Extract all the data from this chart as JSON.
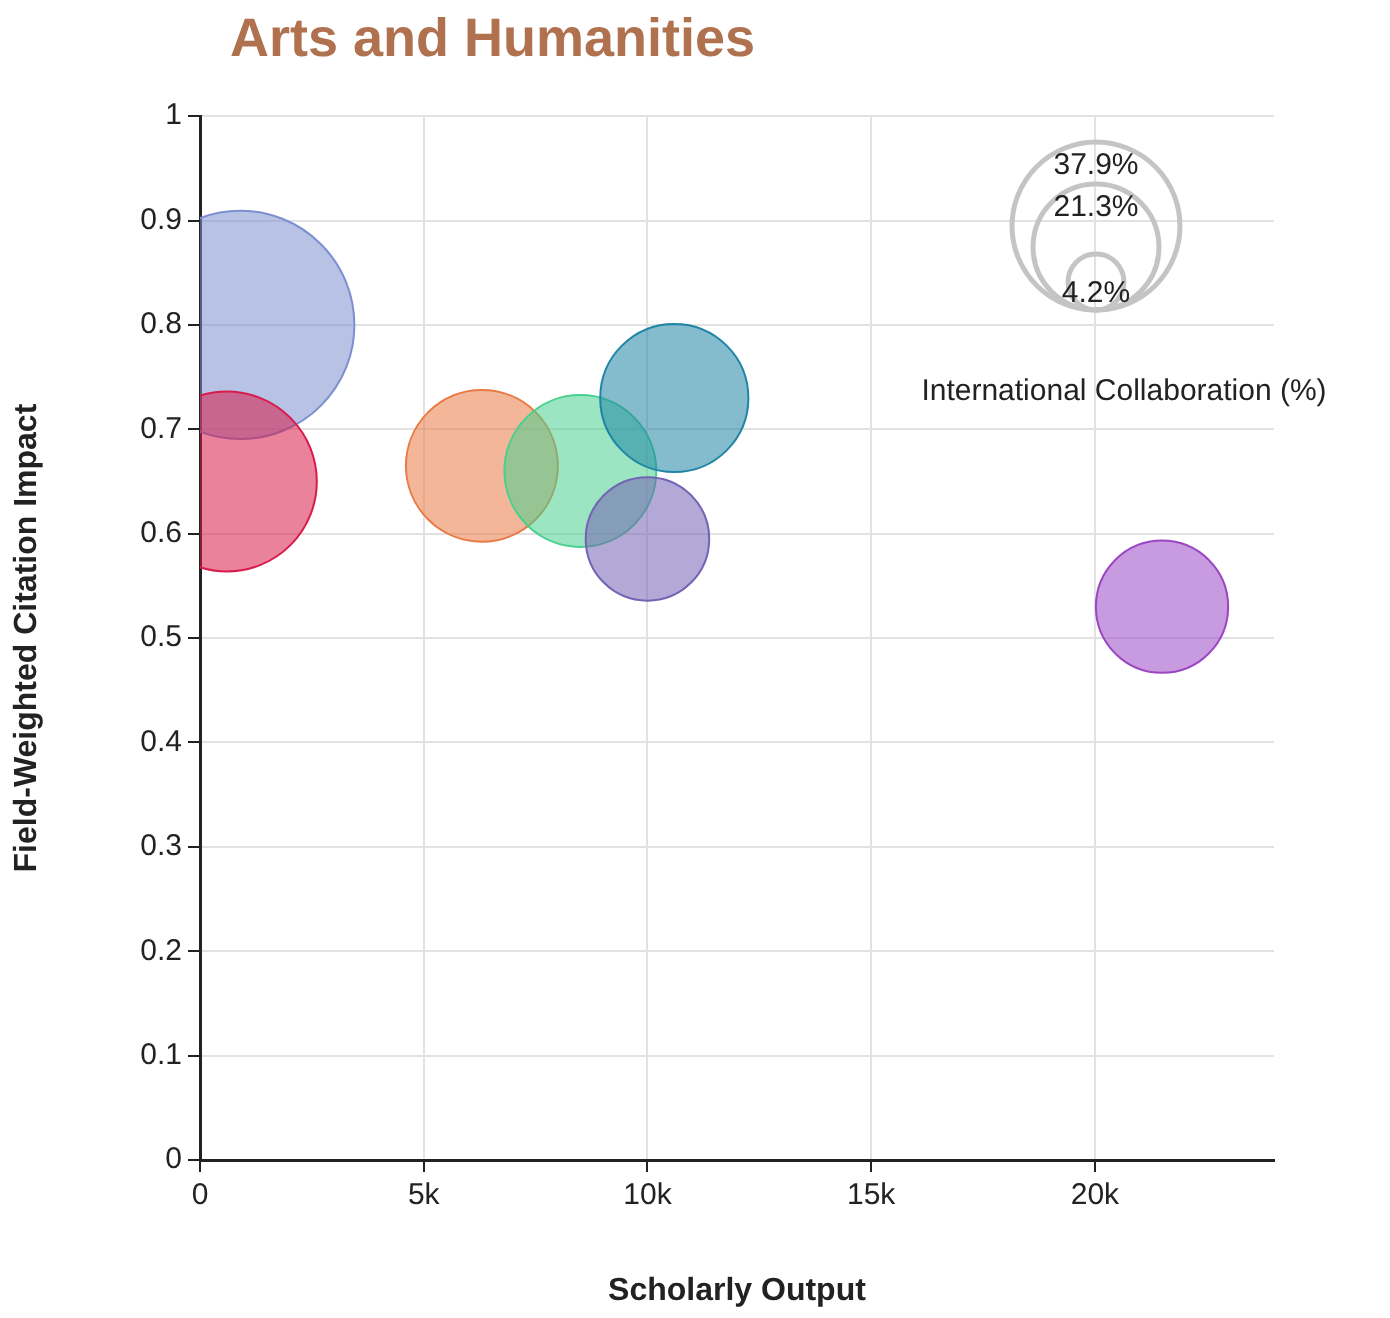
{
  "chart_data": {
    "type": "bubble",
    "title": "Arts and Humanities",
    "xlabel": "Scholarly Output",
    "ylabel": "Field-Weighted Citation Impact",
    "legend_title": "International Collaboration (%)",
    "x": [
      900,
      600,
      6300,
      8500,
      10600,
      10000,
      21500
    ],
    "values": [
      0.8,
      0.65,
      0.665,
      0.66,
      0.73,
      0.595,
      0.53
    ],
    "sizes": [
      70,
      43.5,
      31,
      31,
      29.5,
      20.5,
      23.5
    ],
    "colors": [
      "#7c8fd0",
      "#d81b4b",
      "#ea7a44",
      "#48d08f",
      "#1f85a6",
      "#7463b4",
      "#9b47c4"
    ],
    "size_legend": [
      {
        "value": 37.9,
        "label": "37.9%"
      },
      {
        "value": 21.3,
        "label": "21.3%"
      },
      {
        "value": 4.2,
        "label": "4.2%"
      }
    ],
    "xlim": [
      0,
      24000
    ],
    "xticks": [
      {
        "value": 0,
        "label": "0"
      },
      {
        "value": 5000,
        "label": "5k"
      },
      {
        "value": 10000,
        "label": "10k"
      },
      {
        "value": 15000,
        "label": "15k"
      },
      {
        "value": 20000,
        "label": "20k"
      }
    ],
    "ylim": [
      0,
      1
    ],
    "yticks": [
      0,
      0.1,
      0.2,
      0.3,
      0.4,
      0.5,
      0.6,
      0.7,
      0.8,
      0.9,
      1
    ],
    "grid": true
  }
}
